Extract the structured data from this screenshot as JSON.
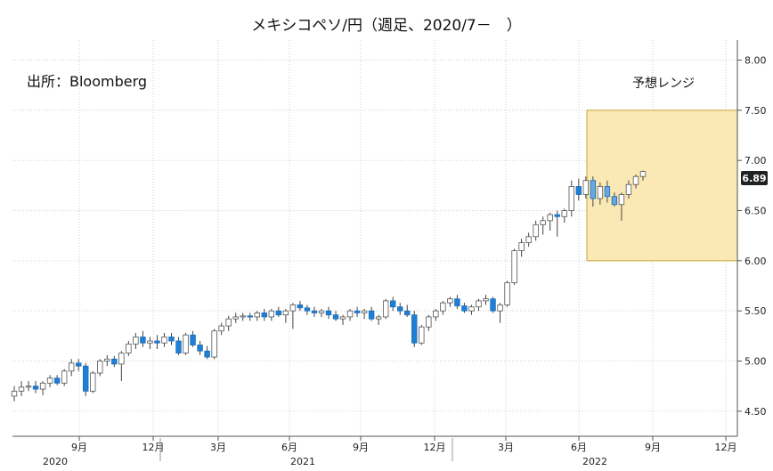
{
  "chart_data": {
    "type": "candlestick",
    "title": "メキシコペソ/円（週足、2020/7－　）",
    "source": "出所：Bloomberg",
    "y_axis": {
      "min": 4.25,
      "max": 8.2,
      "ticks": [
        "8.00",
        "7.50",
        "7.00",
        "6.50",
        "6.00",
        "5.50",
        "5.00",
        "4.50"
      ],
      "position": "right",
      "grid": true
    },
    "x_axis": {
      "ticks": [
        {
          "label": "9月",
          "date": "2020-09"
        },
        {
          "label": "12月",
          "date": "2020-12"
        },
        {
          "label": "3月",
          "date": "2021-03"
        },
        {
          "label": "6月",
          "date": "2021-06"
        },
        {
          "label": "9月",
          "date": "2021-09"
        },
        {
          "label": "12月",
          "date": "2021-12"
        },
        {
          "label": "3月",
          "date": "2022-03"
        },
        {
          "label": "6月",
          "date": "2022-06"
        },
        {
          "label": "9月",
          "date": "2022-09"
        },
        {
          "label": "12月",
          "date": "2022-12"
        }
      ],
      "years": [
        "2020",
        "2021",
        "2022"
      ]
    },
    "last_value": "6.89",
    "forecast_range": {
      "label": "予想レンジ",
      "low": 6.0,
      "high": 7.5,
      "start": "2022-06",
      "end": "2022-12"
    },
    "colors": {
      "up": "#ffffff",
      "down": "#1f7fd6",
      "highlight": "#f2cc6c",
      "box_fill": "#fbe9b5",
      "box_border": "#c9a23a",
      "lastbg": "#222222"
    },
    "candles": [
      [
        4.65,
        4.75,
        4.6,
        4.7
      ],
      [
        4.7,
        4.8,
        4.65,
        4.74
      ],
      [
        4.74,
        4.8,
        4.7,
        4.75
      ],
      [
        4.75,
        4.8,
        4.68,
        4.72
      ],
      [
        4.72,
        4.8,
        4.66,
        4.78
      ],
      [
        4.78,
        4.86,
        4.74,
        4.83
      ],
      [
        4.83,
        4.86,
        4.76,
        4.78
      ],
      [
        4.78,
        4.92,
        4.75,
        4.9
      ],
      [
        4.9,
        5.02,
        4.85,
        4.98
      ],
      [
        4.98,
        5.02,
        4.9,
        4.95
      ],
      [
        4.95,
        4.98,
        4.65,
        4.7
      ],
      [
        4.7,
        4.9,
        4.68,
        4.88
      ],
      [
        4.88,
        5.02,
        4.85,
        5.0
      ],
      [
        5.0,
        5.06,
        4.95,
        5.02
      ],
      [
        5.02,
        5.05,
        4.94,
        4.97
      ],
      [
        4.97,
        5.1,
        4.8,
        5.08
      ],
      [
        5.08,
        5.2,
        5.05,
        5.17
      ],
      [
        5.17,
        5.28,
        5.12,
        5.24
      ],
      [
        5.24,
        5.3,
        5.14,
        5.18
      ],
      [
        5.18,
        5.24,
        5.12,
        5.2
      ],
      [
        5.2,
        5.26,
        5.12,
        5.18
      ],
      [
        5.18,
        5.28,
        5.14,
        5.24
      ],
      [
        5.24,
        5.28,
        5.16,
        5.2
      ],
      [
        5.2,
        5.24,
        5.06,
        5.08
      ],
      [
        5.08,
        5.28,
        5.06,
        5.26
      ],
      [
        5.26,
        5.3,
        5.14,
        5.16
      ],
      [
        5.16,
        5.2,
        5.06,
        5.1
      ],
      [
        5.1,
        5.15,
        5.02,
        5.04
      ],
      [
        5.04,
        5.32,
        5.02,
        5.3
      ],
      [
        5.3,
        5.38,
        5.26,
        5.35
      ],
      [
        5.35,
        5.45,
        5.3,
        5.42
      ],
      [
        5.42,
        5.48,
        5.38,
        5.44
      ],
      [
        5.44,
        5.48,
        5.4,
        5.45
      ],
      [
        5.45,
        5.48,
        5.4,
        5.44
      ],
      [
        5.44,
        5.5,
        5.4,
        5.48
      ],
      [
        5.48,
        5.52,
        5.4,
        5.44
      ],
      [
        5.44,
        5.52,
        5.4,
        5.5
      ],
      [
        5.5,
        5.54,
        5.44,
        5.46
      ],
      [
        5.46,
        5.52,
        5.38,
        5.5
      ],
      [
        5.5,
        5.58,
        5.32,
        5.56
      ],
      [
        5.56,
        5.6,
        5.5,
        5.53
      ],
      [
        5.53,
        5.56,
        5.46,
        5.5
      ],
      [
        5.5,
        5.54,
        5.44,
        5.48
      ],
      [
        5.48,
        5.52,
        5.44,
        5.5
      ],
      [
        5.5,
        5.54,
        5.42,
        5.46
      ],
      [
        5.46,
        5.5,
        5.4,
        5.42
      ],
      [
        5.42,
        5.46,
        5.36,
        5.44
      ],
      [
        5.44,
        5.52,
        5.4,
        5.5
      ],
      [
        5.5,
        5.54,
        5.44,
        5.48
      ],
      [
        5.48,
        5.52,
        5.42,
        5.5
      ],
      [
        5.5,
        5.54,
        5.4,
        5.42
      ],
      [
        5.42,
        5.46,
        5.36,
        5.44
      ],
      [
        5.44,
        5.62,
        5.42,
        5.6
      ],
      [
        5.6,
        5.64,
        5.5,
        5.54
      ],
      [
        5.54,
        5.58,
        5.46,
        5.5
      ],
      [
        5.5,
        5.56,
        5.44,
        5.46
      ],
      [
        5.46,
        5.5,
        5.14,
        5.18
      ],
      [
        5.18,
        5.36,
        5.16,
        5.34
      ],
      [
        5.34,
        5.46,
        5.3,
        5.44
      ],
      [
        5.44,
        5.52,
        5.4,
        5.5
      ],
      [
        5.5,
        5.6,
        5.46,
        5.58
      ],
      [
        5.58,
        5.64,
        5.54,
        5.62
      ],
      [
        5.62,
        5.66,
        5.52,
        5.55
      ],
      [
        5.55,
        5.58,
        5.48,
        5.5
      ],
      [
        5.5,
        5.56,
        5.46,
        5.54
      ],
      [
        5.54,
        5.62,
        5.5,
        5.6
      ],
      [
        5.6,
        5.66,
        5.56,
        5.62
      ],
      [
        5.62,
        5.64,
        5.48,
        5.5
      ],
      [
        5.5,
        5.58,
        5.38,
        5.56
      ],
      [
        5.56,
        5.8,
        5.54,
        5.78
      ],
      [
        5.78,
        6.12,
        5.76,
        6.1
      ],
      [
        6.1,
        6.22,
        6.04,
        6.18
      ],
      [
        6.18,
        6.28,
        6.14,
        6.24
      ],
      [
        6.24,
        6.4,
        6.2,
        6.36
      ],
      [
        6.36,
        6.44,
        6.26,
        6.4
      ],
      [
        6.4,
        6.48,
        6.3,
        6.46
      ],
      [
        6.46,
        6.5,
        6.24,
        6.44
      ],
      [
        6.44,
        6.52,
        6.38,
        6.5
      ],
      [
        6.5,
        6.8,
        6.44,
        6.74
      ],
      [
        6.74,
        6.82,
        6.6,
        6.66
      ],
      [
        6.66,
        6.84,
        6.62,
        6.8
      ],
      [
        6.8,
        6.84,
        6.54,
        6.62
      ],
      [
        6.62,
        6.78,
        6.56,
        6.74
      ],
      [
        6.74,
        6.8,
        6.58,
        6.64
      ],
      [
        6.64,
        6.68,
        6.54,
        6.56
      ],
      [
        6.56,
        6.68,
        6.4,
        6.66
      ],
      [
        6.66,
        6.8,
        6.62,
        6.76
      ],
      [
        6.76,
        6.86,
        6.72,
        6.84
      ],
      [
        6.84,
        6.9,
        6.8,
        6.89
      ]
    ]
  }
}
